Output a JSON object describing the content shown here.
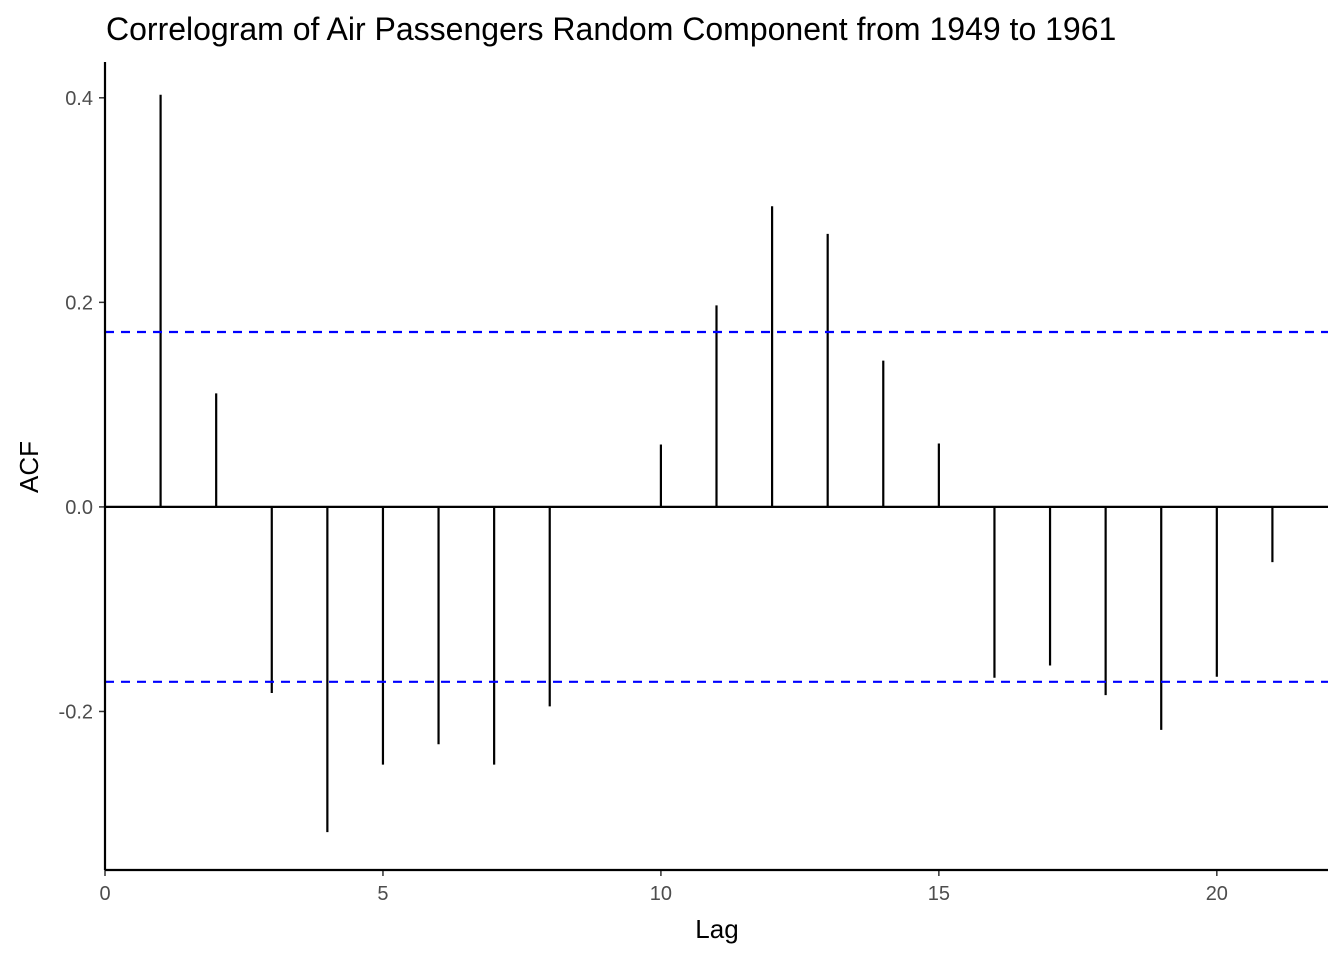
{
  "chart_data": {
    "type": "bar",
    "title": "Correlogram of Air Passengers Random Component from 1949 to 1961",
    "xlabel": "Lag",
    "ylabel": "ACF",
    "xlim": [
      0,
      22
    ],
    "ylim": [
      -0.355,
      0.435
    ],
    "x_ticks": [
      0,
      5,
      10,
      15,
      20
    ],
    "x_tick_labels": [
      "0",
      "5",
      "10",
      "15",
      "20"
    ],
    "y_ticks": [
      -0.2,
      0.0,
      0.2,
      0.4
    ],
    "y_tick_labels": [
      "-0.2",
      "0.0",
      "0.2",
      "0.4"
    ],
    "grid": false,
    "lags": [
      1,
      2,
      3,
      4,
      5,
      6,
      7,
      8,
      9,
      10,
      11,
      12,
      13,
      14,
      15,
      16,
      17,
      18,
      19,
      20,
      21
    ],
    "values": [
      0.403,
      0.111,
      -0.182,
      -0.318,
      -0.252,
      -0.232,
      -0.252,
      -0.195,
      0.0,
      0.061,
      0.197,
      0.294,
      0.267,
      0.143,
      0.062,
      -0.167,
      -0.155,
      -0.184,
      -0.218,
      -0.166,
      -0.054
    ],
    "confidence_limits": [
      0.171,
      -0.171
    ],
    "colors": {
      "bars": "#000000",
      "confidence_lines": "#0000ff",
      "axis": "#000000"
    }
  }
}
